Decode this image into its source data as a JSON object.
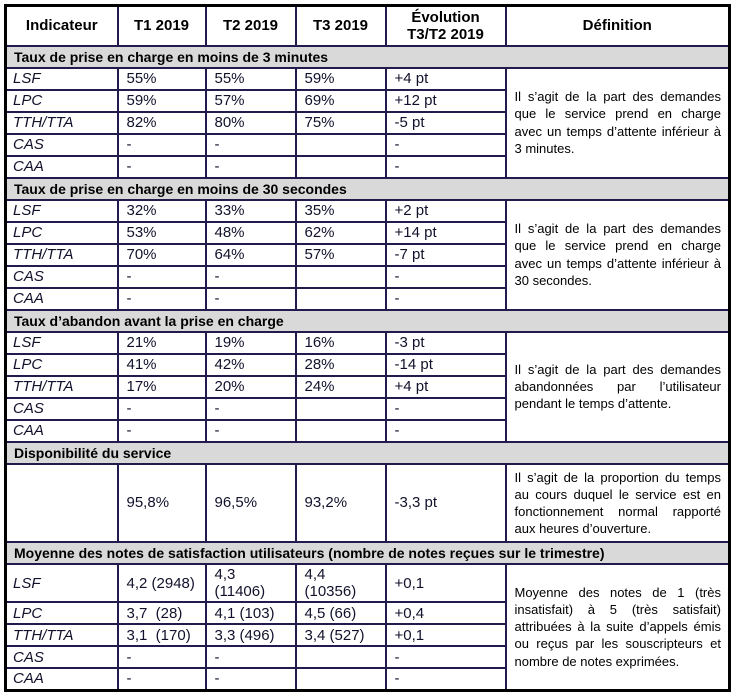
{
  "colors": {
    "inner_border": "#221c4e",
    "outer_border": "#000000",
    "section_band": "#d9d9d9",
    "text": "#11112b"
  },
  "header": {
    "indicateur": "Indicateur",
    "t1": "T1 2019",
    "t2": "T2 2019",
    "t3": "T3 2019",
    "evolution_line1": "Évolution",
    "evolution_line2": "T3/T2 2019",
    "definition": "Définition"
  },
  "sections": [
    {
      "title": "Taux de prise en charge en moins de 3 minutes",
      "definition": "Il s’agit de la part des demandes que le service prend en charge avec un temps d’attente inférieur à 3 minutes.",
      "tall": false,
      "rows": [
        {
          "label": "LSF",
          "t1": "55%",
          "t2": "55%",
          "t3": "59%",
          "evolution": "+4 pt"
        },
        {
          "label": "LPC",
          "t1": "59%",
          "t2": "57%",
          "t3": "69%",
          "evolution": "+12 pt"
        },
        {
          "label": "TTH/TTA",
          "t1": "82%",
          "t2": "80%",
          "t3": "75%",
          "evolution": "-5 pt"
        },
        {
          "label": "CAS",
          "t1": "-",
          "t2": "-",
          "t3": "",
          "evolution": "-"
        },
        {
          "label": "CAA",
          "t1": "-",
          "t2": "-",
          "t3": "",
          "evolution": "-"
        }
      ]
    },
    {
      "title": "Taux de prise en charge en moins de 30 secondes",
      "definition": "Il s’agit de la part des demandes que le service prend en charge avec un temps d’attente inférieur à 30 secondes.",
      "tall": false,
      "rows": [
        {
          "label": "LSF",
          "t1": "32%",
          "t2": "33%",
          "t3": "35%",
          "evolution": "+2 pt"
        },
        {
          "label": "LPC",
          "t1": "53%",
          "t2": "48%",
          "t3": "62%",
          "evolution": "+14 pt"
        },
        {
          "label": "TTH/TTA",
          "t1": "70%",
          "t2": "64%",
          "t3": "57%",
          "evolution": "-7 pt"
        },
        {
          "label": "CAS",
          "t1": "-",
          "t2": "-",
          "t3": "",
          "evolution": "-"
        },
        {
          "label": "CAA",
          "t1": "-",
          "t2": "-",
          "t3": "",
          "evolution": "-"
        }
      ]
    },
    {
      "title": "Taux d’abandon avant la prise en charge",
      "definition": "Il s’agit de la part des demandes abandonnées par l’utilisateur pendant le temps d’attente.",
      "tall": false,
      "rows": [
        {
          "label": "LSF",
          "t1": "21%",
          "t2": "19%",
          "t3": "16%",
          "evolution": "-3 pt"
        },
        {
          "label": "LPC",
          "t1": "41%",
          "t2": "42%",
          "t3": "28%",
          "evolution": "-14 pt"
        },
        {
          "label": "TTH/TTA",
          "t1": "17%",
          "t2": "20%",
          "t3": "24%",
          "evolution": "+4 pt"
        },
        {
          "label": "CAS",
          "t1": "-",
          "t2": "-",
          "t3": "",
          "evolution": "-"
        },
        {
          "label": "CAA",
          "t1": "-",
          "t2": "-",
          "t3": "",
          "evolution": "-"
        }
      ]
    },
    {
      "title": "Disponibilité du service",
      "definition": "Il s’agit de la proportion du temps au cours duquel le service est en fonctionnement normal rapporté aux heures d’ouverture.",
      "tall": true,
      "rows": [
        {
          "label": "",
          "t1": "95,8%",
          "t2": "96,5%",
          "t3": "93,2%",
          "evolution": "-3,3 pt"
        }
      ]
    },
    {
      "title": "Moyenne des notes de satisfaction utilisateurs (nombre de notes reçues sur le trimestre)",
      "definition": "Moyenne des notes de 1 (très insatisfait) à 5 (très satisfait) attribuées à la suite d’appels émis ou reçus par les souscripteurs et nombre de notes exprimées.",
      "tall": false,
      "rows": [
        {
          "label": "LSF",
          "t1": "4,2 (2948)",
          "t2": "4,3 (11406)",
          "t3": "4,4 (10356)",
          "evolution": "+0,1"
        },
        {
          "label": "LPC",
          "t1": "3,7  (28)",
          "t2": "4,1 (103)",
          "t3": "4,5 (66)",
          "evolution": "+0,4"
        },
        {
          "label": "TTH/TTA",
          "t1": "3,1  (170)",
          "t2": "3,3 (496)",
          "t3": "3,4 (527)",
          "evolution": "+0,1"
        },
        {
          "label": "CAS",
          "t1": "-",
          "t2": "-",
          "t3": "",
          "evolution": "-"
        },
        {
          "label": "CAA",
          "t1": "-",
          "t2": "-",
          "t3": "",
          "evolution": "-"
        }
      ]
    }
  ]
}
